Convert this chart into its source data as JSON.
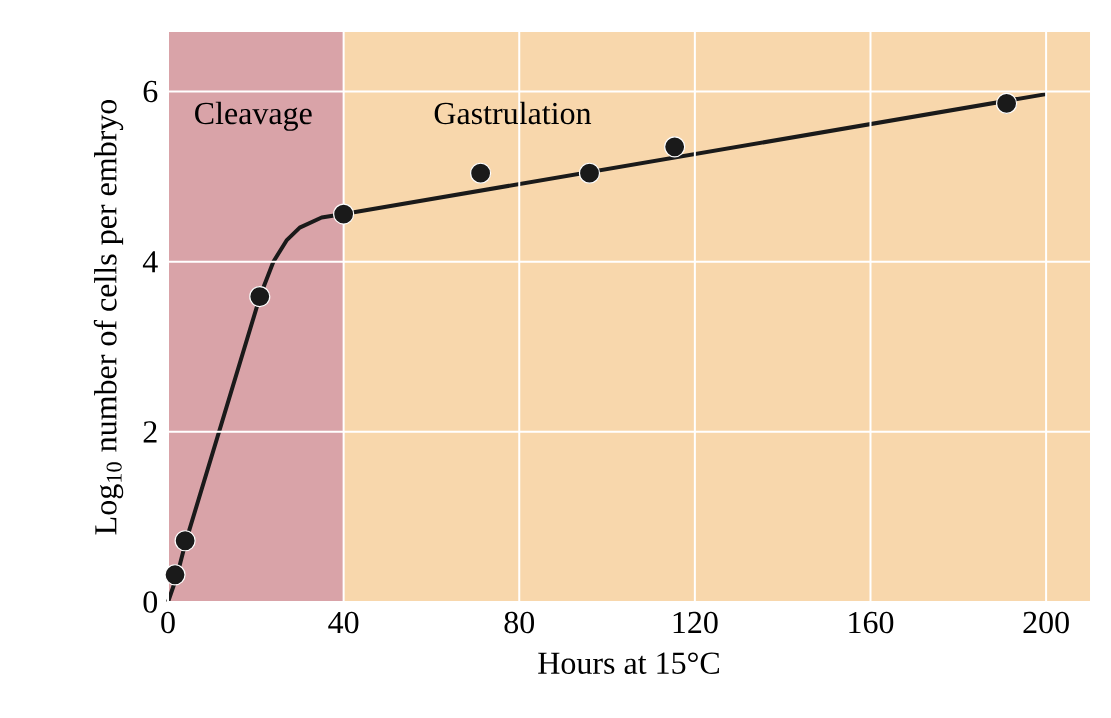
{
  "chart_data": {
    "type": "scatter",
    "xlabel": "Hours at 15°C",
    "ylabel": "Log$_{10}$ number of cells per embryo",
    "xlim": [
      0,
      210
    ],
    "ylim": [
      0,
      6.7
    ],
    "xticks": [
      0,
      40,
      80,
      120,
      160,
      200
    ],
    "yticks": [
      0,
      2,
      4,
      6
    ],
    "grid": true,
    "series": [
      {
        "type": "line",
        "color": "#1a1a1a",
        "line_style": "solid",
        "marker": "none",
        "x": [
          0,
          2,
          4,
          21,
          24,
          27,
          30,
          35,
          40,
          200
        ],
        "values": [
          0,
          0.3,
          0.7,
          3.6,
          4.0,
          4.25,
          4.4,
          4.52,
          4.56,
          5.97
        ]
      },
      {
        "color": "#1a1a1a",
        "marker": "circle",
        "x": [
          1.6,
          3.9,
          20.9,
          40,
          71.2,
          96,
          115.4,
          191
        ],
        "values": [
          0.32,
          0.72,
          3.59,
          4.56,
          5.04,
          5.04,
          5.35,
          5.86
        ]
      }
    ],
    "bands": [
      {
        "axis": "x",
        "from": 0,
        "to": 40,
        "label": "Cleavage",
        "color": "#d9a3a8"
      },
      {
        "axis": "x",
        "from": 40,
        "to": 210,
        "label": "Gastrulation",
        "color": "#f8d7ac"
      }
    ]
  }
}
